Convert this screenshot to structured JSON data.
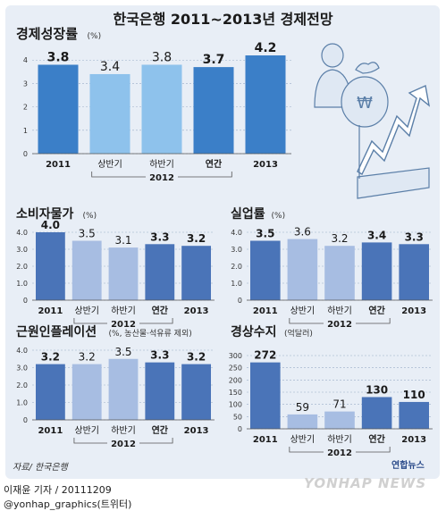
{
  "title": "한국은행 2011~2013년 경제전망",
  "source": "자료/ 한국은행",
  "byline": "이재윤 기자 / 20111209",
  "twitter": "@yonhap_graphics(트위터)",
  "logo_text": "연합뉴스",
  "watermark": "YONHAP NEWS",
  "colors": {
    "dark": "#3b7fc8",
    "light": "#8ec2ec",
    "dark_alt": "#4a74b8",
    "light_alt": "#a7bde2",
    "grid": "#9aaec8",
    "background": "#e8eef6"
  },
  "chart_data": [
    {
      "id": "growth",
      "type": "bar",
      "title": "경제성장률",
      "unit": "(%)",
      "categories": [
        "2011",
        "상반기",
        "하반기",
        "연간",
        "2013"
      ],
      "group_label": "2012",
      "values": [
        3.8,
        3.4,
        3.8,
        3.7,
        4.2
      ],
      "labels": [
        "3.8",
        "3.4",
        "3.8",
        "3.7",
        "4.2"
      ],
      "ylim": [
        0,
        4.2
      ],
      "yticks": [
        "0",
        "1",
        "2",
        "3",
        "4"
      ]
    },
    {
      "id": "cpi",
      "type": "bar",
      "title": "소비자물가",
      "unit": "(%)",
      "categories": [
        "2011",
        "상반기",
        "하반기",
        "연간",
        "2013"
      ],
      "group_label": "2012",
      "values": [
        4.0,
        3.5,
        3.1,
        3.3,
        3.2
      ],
      "labels": [
        "4.0",
        "3.5",
        "3.1",
        "3.3",
        "3.2"
      ],
      "ylim": [
        0,
        4.0
      ],
      "yticks": [
        "0",
        "1.0",
        "2.0",
        "3.0",
        "4.0"
      ]
    },
    {
      "id": "unemployment",
      "type": "bar",
      "title": "실업률",
      "unit": "(%)",
      "categories": [
        "2011",
        "상반기",
        "하반기",
        "연간",
        "2013"
      ],
      "group_label": "2012",
      "values": [
        3.5,
        3.6,
        3.2,
        3.4,
        3.3
      ],
      "labels": [
        "3.5",
        "3.6",
        "3.2",
        "3.4",
        "3.3"
      ],
      "ylim": [
        0,
        4.0
      ],
      "yticks": [
        "0",
        "1.0",
        "2.0",
        "3.0",
        "4.0"
      ]
    },
    {
      "id": "core",
      "type": "bar",
      "title": "근원인플레이션",
      "unit": "(%, 농산물·석유류 제외)",
      "categories": [
        "2011",
        "상반기",
        "하반기",
        "연간",
        "2013"
      ],
      "group_label": "2012",
      "values": [
        3.2,
        3.2,
        3.5,
        3.3,
        3.2
      ],
      "labels": [
        "3.2",
        "3.2",
        "3.5",
        "3.3",
        "3.2"
      ],
      "ylim": [
        0,
        4.0
      ],
      "yticks": [
        "0",
        "1.0",
        "2.0",
        "3.0",
        "4.0"
      ]
    },
    {
      "id": "current_account",
      "type": "bar",
      "title": "경상수지",
      "unit": "(억달러)",
      "categories": [
        "2011",
        "상반기",
        "하반기",
        "연간",
        "2013"
      ],
      "group_label": "2012",
      "values": [
        272,
        59,
        71,
        130,
        110
      ],
      "labels": [
        "272",
        "59",
        "71",
        "130",
        "110"
      ],
      "ylim": [
        0,
        300
      ],
      "yticks": [
        "0",
        "50",
        "100",
        "150",
        "200",
        "250",
        "300"
      ]
    }
  ]
}
